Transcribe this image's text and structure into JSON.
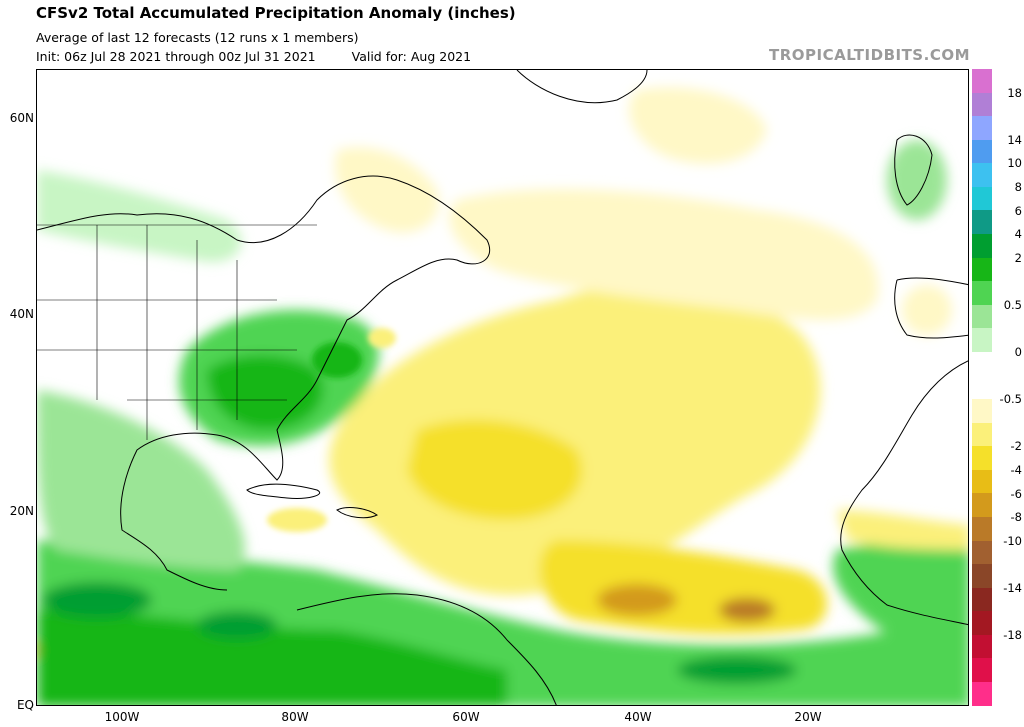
{
  "header": {
    "title": "CFSv2 Total Accumulated Precipitation Anomaly (inches)",
    "subtitle": "Average of last 12 forecasts (12 runs x 1 members)",
    "init": "Init: 06z Jul 28 2021 through 00z Jul 31 2021",
    "valid": "Valid for: Aug 2021",
    "brand": "TROPICALTIDBITS.COM"
  },
  "map": {
    "region": "North Atlantic basin",
    "lat_labels": [
      "60N",
      "40N",
      "20N",
      "EQ"
    ],
    "lon_labels": [
      "100W",
      "80W",
      "60W",
      "40W",
      "20W"
    ]
  },
  "colorbar": {
    "labels": [
      "18",
      "14",
      "10",
      "8",
      "6",
      "4",
      "2",
      "0.5",
      "0",
      "-0.5",
      "-2",
      "-4",
      "-6",
      "-8",
      "-10",
      "-14",
      "-18"
    ],
    "colors": [
      "#d970d0",
      "#b07fd6",
      "#8ea6ff",
      "#4f9cf0",
      "#3dc1f0",
      "#20c8d6",
      "#0f9a86",
      "#009e30",
      "#17b617",
      "#4fd452",
      "#9be596",
      "#c8f5c4",
      "#ffffff",
      "#ffffff",
      "#fff8c6",
      "#fbf07a",
      "#f5e02a",
      "#e8bd16",
      "#d39a1c",
      "#ba7a28",
      "#a16030",
      "#8a4628",
      "#8a2820",
      "#a31822",
      "#c20f32",
      "#e0104a",
      "#ff2e8a"
    ]
  }
}
